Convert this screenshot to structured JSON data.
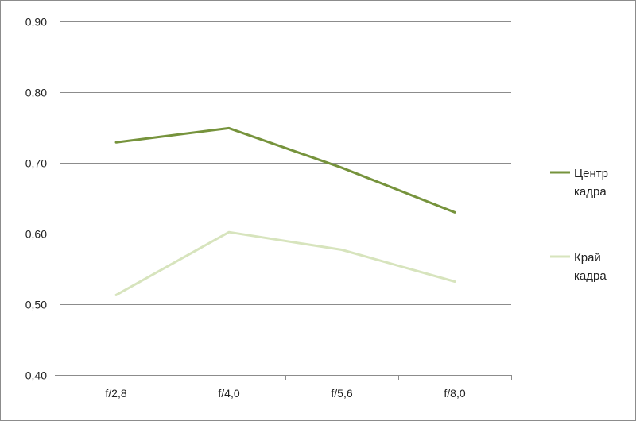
{
  "chart_data": {
    "type": "line",
    "categories": [
      "f/2,8",
      "f/4,0",
      "f/5,6",
      "f/8,0"
    ],
    "y_tick_labels": [
      "0,40",
      "0,50",
      "0,60",
      "0,70",
      "0,80",
      "0,90"
    ],
    "ylim": [
      0.4,
      0.9
    ],
    "y_step": 0.1,
    "grid": "horizontal",
    "legend_position": "right",
    "series": [
      {
        "name": "Центр кадра",
        "legend_lines": [
          "Центр",
          "кадра"
        ],
        "color": "#76933c",
        "values": [
          0.729,
          0.749,
          0.693,
          0.63
        ]
      },
      {
        "name": "Край кадра",
        "legend_lines": [
          "Край",
          "кадра"
        ],
        "color": "#d7e4bd",
        "values": [
          0.513,
          0.602,
          0.577,
          0.532
        ]
      }
    ]
  }
}
